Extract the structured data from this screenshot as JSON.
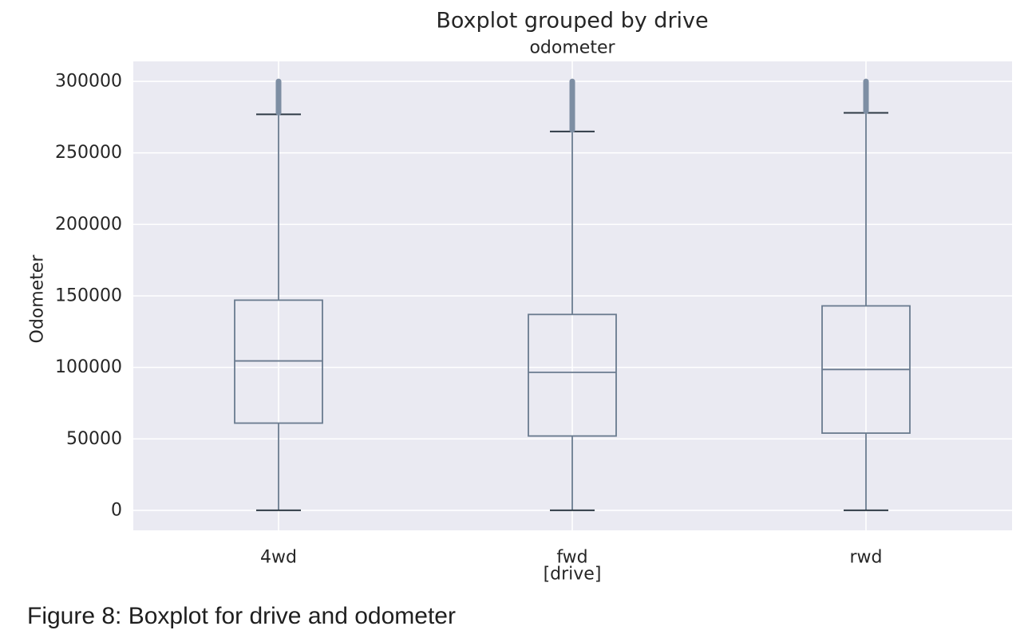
{
  "figure": {
    "caption": "Figure 8: Boxplot for drive and odometer"
  },
  "chart_data": {
    "type": "boxplot",
    "title": "Boxplot grouped by drive",
    "subtitle": "odometer",
    "xlabel": "[drive]",
    "ylabel": "Odometer",
    "categories": [
      "4wd",
      "fwd",
      "rwd"
    ],
    "ylim": [
      -14000,
      314000
    ],
    "yticks": [
      0,
      50000,
      100000,
      150000,
      200000,
      250000,
      300000
    ],
    "ytick_labels": [
      "0",
      "50000",
      "100000",
      "150000",
      "200000",
      "250000",
      "300000"
    ],
    "grid": true,
    "boxes": [
      {
        "category": "4wd",
        "whisker_low": 0,
        "q1": 61000,
        "median": 104500,
        "q3": 147000,
        "whisker_high": 277000,
        "outliers_from": 277000,
        "outliers_to": 300000
      },
      {
        "category": "fwd",
        "whisker_low": 0,
        "q1": 52000,
        "median": 96500,
        "q3": 137000,
        "whisker_high": 265000,
        "outliers_from": 265000,
        "outliers_to": 300000
      },
      {
        "category": "rwd",
        "whisker_low": 0,
        "q1": 54000,
        "median": 98500,
        "q3": 143000,
        "whisker_high": 278000,
        "outliers_from": 278000,
        "outliers_to": 300000
      }
    ],
    "colors": {
      "background": "#eaeaf2",
      "grid": "#ffffff",
      "box": "#6a7b8f",
      "text": "#262626"
    }
  }
}
